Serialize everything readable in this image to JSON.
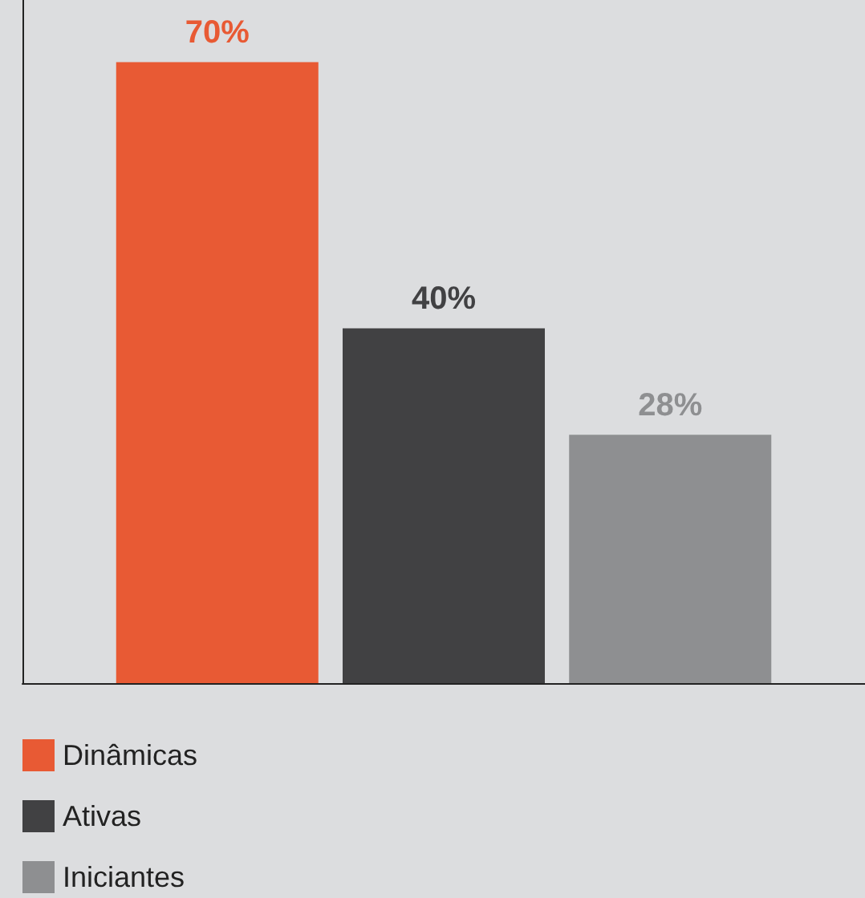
{
  "chart_data": {
    "type": "bar",
    "categories": [
      null
    ],
    "ylim": [
      0,
      77
    ],
    "series": [
      {
        "name": "Dinâmicas",
        "color": "#e85a34",
        "values": [
          70
        ],
        "value_labels": [
          "70%"
        ]
      },
      {
        "name": "Ativas",
        "color": "#414143",
        "values": [
          40
        ],
        "value_labels": [
          "40%"
        ]
      },
      {
        "name": "Iniciantes",
        "color": "#8e8f91",
        "values": [
          28
        ],
        "value_labels": [
          "28%"
        ]
      }
    ],
    "legend": "bottom left",
    "tick_labels": false
  }
}
